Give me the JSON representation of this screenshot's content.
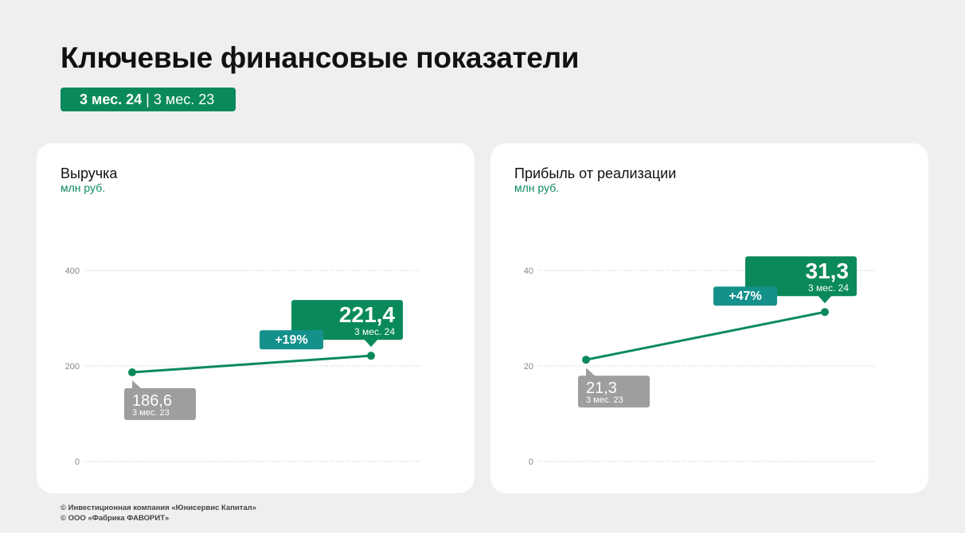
{
  "header": {
    "title": "Ключевые финансовые показатели",
    "period_current": "3 мес. 24",
    "period_separator": " | ",
    "period_previous": "3 мес. 23"
  },
  "footer": {
    "line1": "© Инвестиционная компания «Юнисервис Капитал»",
    "line2": "© ООО «Фабрика ФАВОРИТ»"
  },
  "colors": {
    "line": "#0a8a5a",
    "current_label": "#0a8a5a",
    "previous_label": "#9e9e9e",
    "change_badge": "#15918c"
  },
  "chart_data": [
    {
      "type": "line",
      "title": "Выручка",
      "ylabel": "млн руб.",
      "ylim": [
        0,
        400
      ],
      "yticks": [
        0,
        200,
        400
      ],
      "grid": true,
      "points": [
        {
          "x": "3 мес. 23",
          "y": 186.6,
          "label": "186,6",
          "sublabel": "3 мес. 23"
        },
        {
          "x": "3 мес. 24",
          "y": 221.4,
          "label": "221,4",
          "sublabel": "3 мес. 24"
        }
      ],
      "change": "+19%"
    },
    {
      "type": "line",
      "title": "Прибыль от реализации",
      "ylabel": "млн руб.",
      "ylim": [
        0,
        40
      ],
      "yticks": [
        0,
        20,
        40
      ],
      "grid": true,
      "points": [
        {
          "x": "3 мес. 23",
          "y": 21.3,
          "label": "21,3",
          "sublabel": "3 мес. 23"
        },
        {
          "x": "3 мес. 24",
          "y": 31.3,
          "label": "31,3",
          "sublabel": "3 мес. 24"
        }
      ],
      "change": "+47%"
    }
  ]
}
